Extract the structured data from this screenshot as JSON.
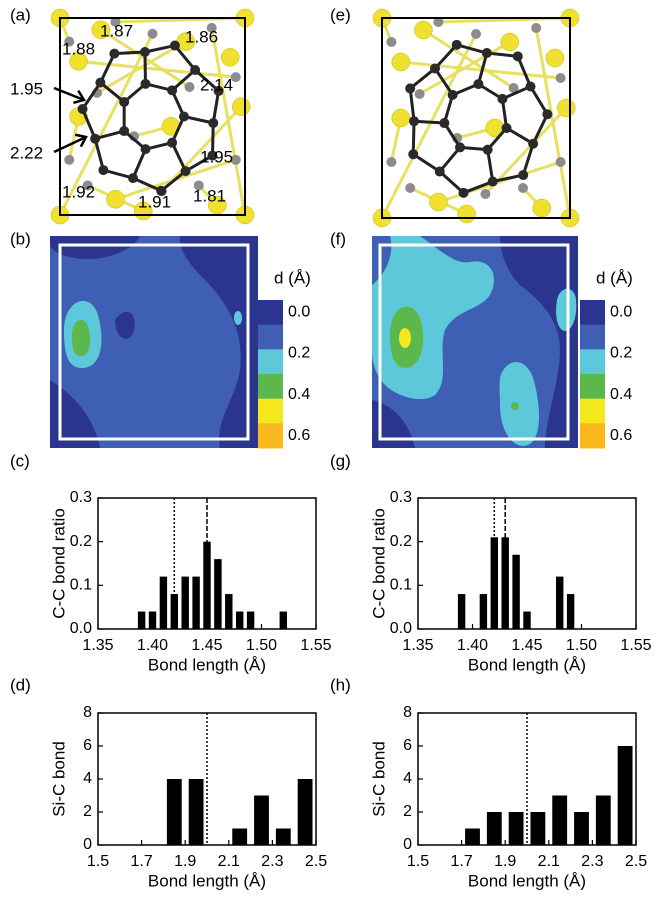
{
  "structures": [
    {
      "panel_label": "(a)",
      "bond_labels": [
        1.87,
        1.88,
        1.86,
        1.95,
        2.14,
        2.22,
        1.95,
        1.92,
        1.91,
        1.81
      ]
    },
    {
      "panel_label": "(e)"
    }
  ],
  "contour_maps": [
    {
      "panel_label": "(b)",
      "colorbar": {
        "label": "d (Å)",
        "colors": [
          "#2b3590",
          "#3e5fb3",
          "#5cc8da",
          "#5cb84b",
          "#f2e81c",
          "#f9b81c"
        ],
        "ticks": [
          {
            "value": 0,
            "label": "0.0"
          },
          0.2,
          0.4,
          0.6
        ],
        "range": [
          0,
          0.6
        ]
      }
    },
    {
      "panel_label": "(f)",
      "colorbar": {
        "label": "d (Å)",
        "colors": [
          "#2b3590",
          "#3e5fb3",
          "#5cc8da",
          "#5cb84b",
          "#f2e81c",
          "#f9b81c"
        ],
        "ticks": [
          {
            "value": 0,
            "label": "0.0"
          },
          0.2,
          0.4,
          0.6
        ],
        "range": [
          0,
          0.6
        ]
      }
    }
  ],
  "chart_data": [
    {
      "type": "bar",
      "panel_label": "(c)",
      "xlabel": "Bond length (Å)",
      "ylabel": "C-C bond ratio",
      "color": "#000000",
      "x": [
        1.39,
        1.4,
        1.41,
        1.42,
        1.43,
        1.44,
        1.45,
        1.46,
        1.47,
        1.48,
        1.49,
        1.52
      ],
      "values": [
        0.04,
        0.04,
        0.12,
        0.08,
        0.12,
        0.12,
        0.2,
        0.16,
        0.08,
        0.04,
        0.04,
        0.04
      ],
      "xlim": [
        1.35,
        1.55
      ],
      "ylim": [
        0,
        0.3
      ],
      "xticks": [
        1.35,
        {
          "value": 1.4,
          "label": "1.40"
        },
        1.45,
        {
          "value": 1.5,
          "label": "1.50"
        },
        1.55
      ],
      "yticks": [
        {
          "value": 0,
          "label": "0.0"
        },
        0.1,
        0.2,
        0.3
      ],
      "reference_lines": [
        {
          "value": 1.42,
          "style": "dotted"
        },
        {
          "value": 1.45,
          "style": "dashed"
        }
      ]
    },
    {
      "type": "bar",
      "panel_label": "(d)",
      "xlabel": "Bond length (Å)",
      "ylabel": "Si-C bond",
      "color": "#000000",
      "x": [
        1.85,
        1.95,
        2.15,
        2.25,
        2.35,
        2.45
      ],
      "values": [
        4,
        4,
        1,
        3,
        1,
        4
      ],
      "xlim": [
        1.5,
        2.5
      ],
      "ylim": [
        0,
        8
      ],
      "xticks": [
        1.5,
        1.7,
        1.9,
        2.1,
        2.3,
        2.5
      ],
      "yticks": [
        0,
        2,
        4,
        6,
        8
      ],
      "reference_lines": [
        {
          "value": 2.0,
          "style": "dotted"
        }
      ]
    },
    {
      "type": "bar",
      "panel_label": "(g)",
      "xlabel": "Bond length (Å)",
      "ylabel": "C-C bond ratio",
      "color": "#000000",
      "x": [
        1.39,
        1.41,
        1.42,
        1.43,
        1.44,
        1.45,
        1.48,
        1.49
      ],
      "values": [
        0.08,
        0.08,
        0.21,
        0.21,
        0.17,
        0.04,
        0.12,
        0.08
      ],
      "xlim": [
        1.35,
        1.55
      ],
      "ylim": [
        0,
        0.3
      ],
      "xticks": [
        1.35,
        {
          "value": 1.4,
          "label": "1.40"
        },
        1.45,
        {
          "value": 1.5,
          "label": "1.50"
        },
        1.55
      ],
      "yticks": [
        {
          "value": 0,
          "label": "0.0"
        },
        0.1,
        0.2,
        0.3
      ],
      "reference_lines": [
        {
          "value": 1.42,
          "style": "dotted"
        },
        {
          "value": 1.43,
          "style": "dashed"
        }
      ]
    },
    {
      "type": "bar",
      "panel_label": "(h)",
      "xlabel": "Bond length (Å)",
      "ylabel": "Si-C bond",
      "color": "#000000",
      "x": [
        1.75,
        1.85,
        1.95,
        2.05,
        2.15,
        2.25,
        2.35,
        2.45
      ],
      "values": [
        1,
        2,
        2,
        2,
        3,
        2,
        3,
        6
      ],
      "xlim": [
        1.5,
        2.5
      ],
      "ylim": [
        0,
        8
      ],
      "xticks": [
        1.5,
        1.7,
        1.9,
        2.1,
        2.3,
        2.5
      ],
      "yticks": [
        0,
        2,
        4,
        6,
        8
      ],
      "reference_lines": [
        {
          "value": 2.0,
          "style": "dotted"
        }
      ]
    }
  ]
}
